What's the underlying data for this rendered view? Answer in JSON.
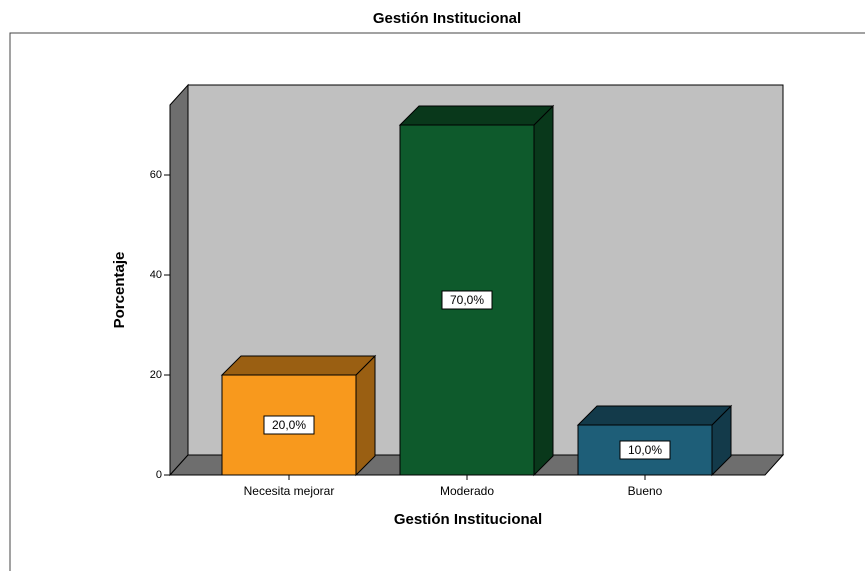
{
  "chart_data": {
    "type": "bar3d",
    "title": "Gestión Institucional",
    "x_label": "Gestión Institucional",
    "y_label": "Porcentaje",
    "categories": [
      "Necesita mejorar",
      "Moderado",
      "Bueno"
    ],
    "values": [
      20,
      70,
      10
    ],
    "value_labels": [
      "20,0%",
      "70,0%",
      "10,0%"
    ],
    "colors": [
      "#f8991d",
      "#0e5a2c",
      "#1e5e78"
    ],
    "ylim": [
      0,
      74
    ],
    "yticks": [
      0,
      20,
      40,
      60
    ]
  }
}
